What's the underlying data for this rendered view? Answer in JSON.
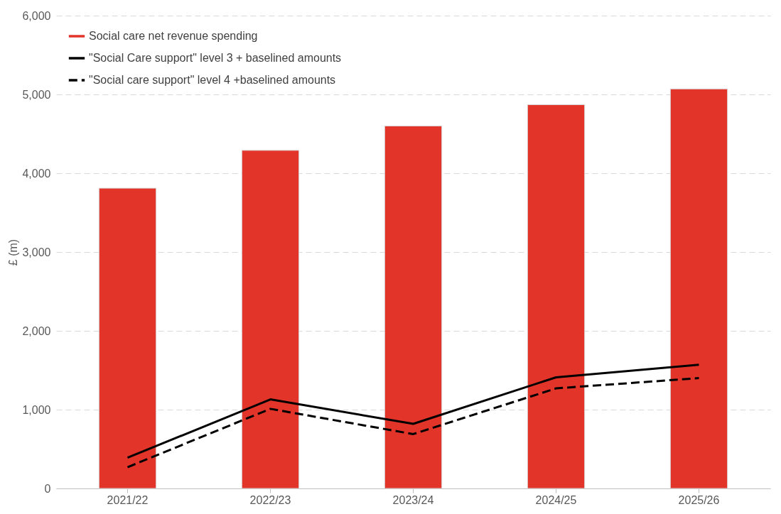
{
  "chart_data": {
    "type": "bar",
    "ylabel": "£ (m)",
    "categories": [
      "2021/22",
      "2022/23",
      "2023/24",
      "2024/25",
      "2025/26"
    ],
    "series": [
      {
        "name": "Social care net revenue spending",
        "color": "#e3342a",
        "values": [
          3810,
          4290,
          4600,
          4870,
          5070
        ]
      },
      {
        "name": "\"Social Care support\" level 3 + baselined amounts",
        "type": "line",
        "line_style": "solid",
        "color": "#000000",
        "values": [
          390,
          1130,
          820,
          1410,
          1570
        ]
      },
      {
        "name": "\"Social care support\" level 4 +baselined amounts",
        "type": "line",
        "line_style": "dashed",
        "color": "#000000",
        "values": [
          270,
          1010,
          690,
          1270,
          1400
        ]
      }
    ],
    "ylim": [
      0,
      6000
    ],
    "yticks": [
      0,
      {
        "value": 1000,
        "label": "1,000"
      },
      {
        "value": 2000,
        "label": "2,000"
      },
      {
        "value": 3000,
        "label": "3,000"
      },
      {
        "value": 4000,
        "label": "4,000"
      },
      {
        "value": 5000,
        "label": "5,000"
      },
      {
        "value": 6000,
        "label": "6,000"
      }
    ],
    "grid": "y",
    "legend": "top left",
    "marker": "none"
  }
}
